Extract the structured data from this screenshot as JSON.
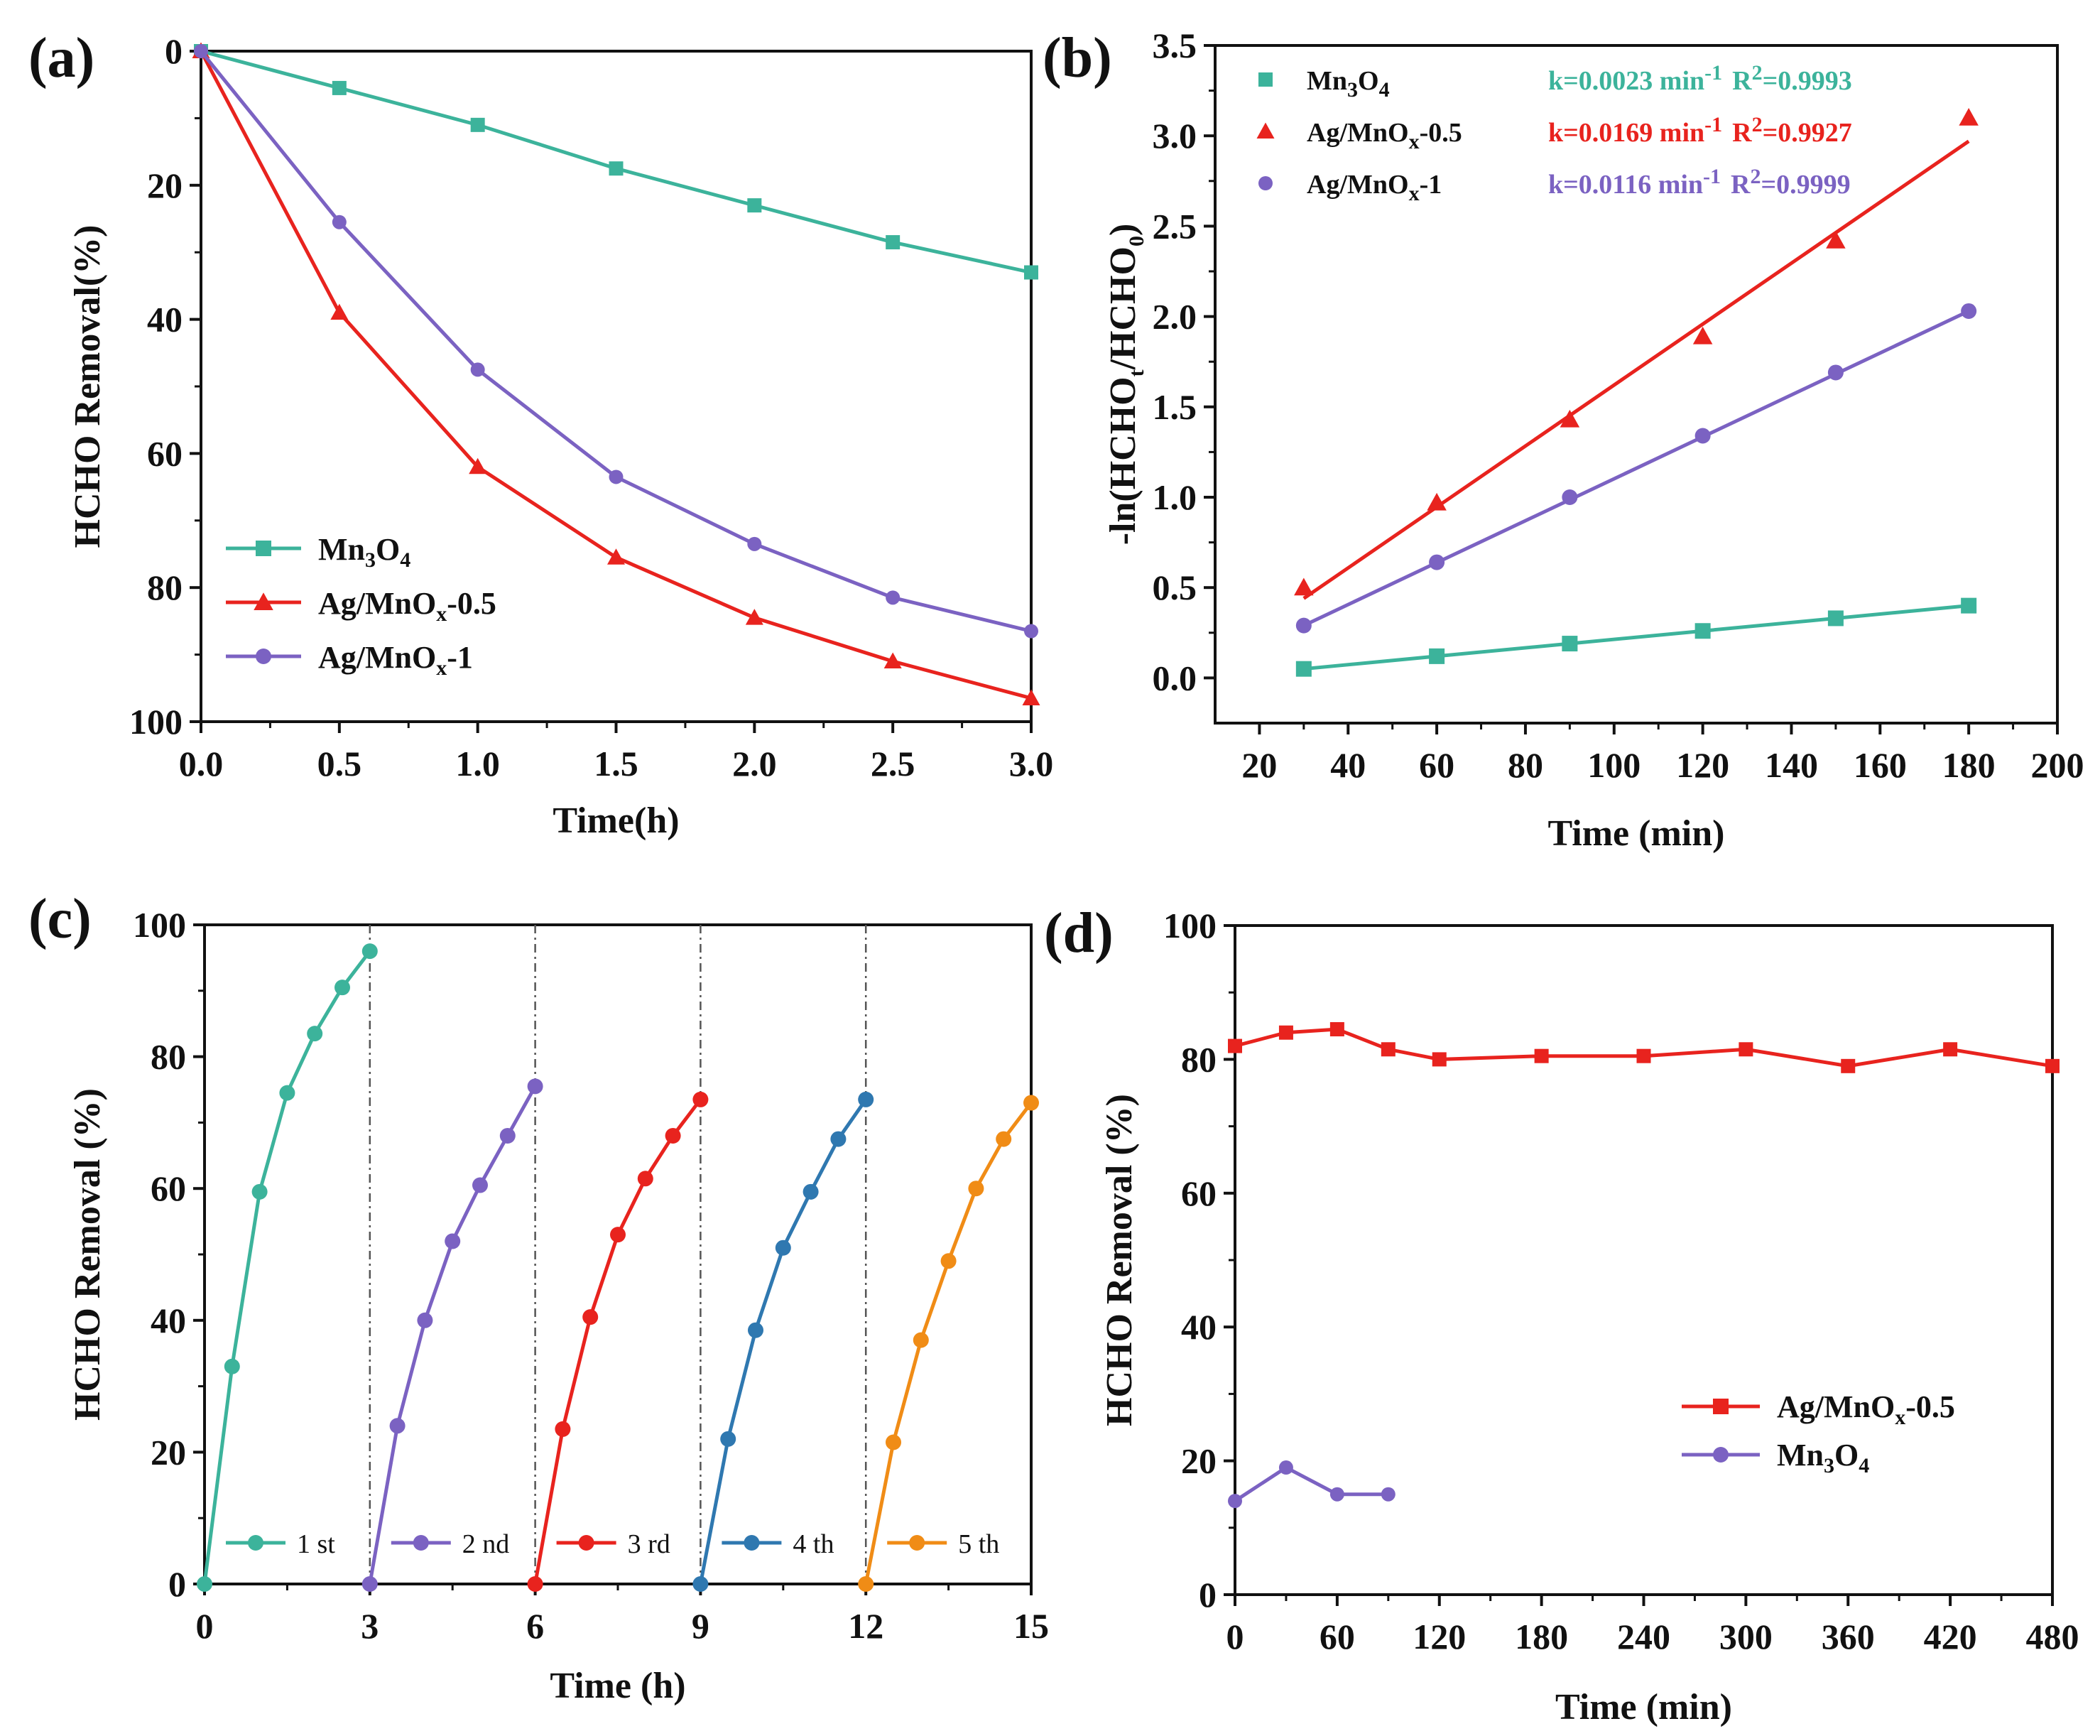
{
  "colors": {
    "mn3o4": "#3cb39b",
    "ag05": "#e8231e",
    "ag1": "#7b62c2",
    "cycle4": "#2f78b0",
    "cycle5": "#f08c16",
    "axis": "#111111"
  },
  "chart_data": [
    {
      "id": "a",
      "panel_label": "(a)",
      "type": "line",
      "xlabel": "Time(h)",
      "ylabel": "HCHO Removal(%)",
      "xlim": [
        0,
        3
      ],
      "ylim": [
        100,
        0
      ],
      "y_inverted": true,
      "xticks": [
        "0.0",
        "0.5",
        "1.0",
        "1.5",
        "2.0",
        "2.5",
        "3.0"
      ],
      "yticks": [
        "0",
        "20",
        "40",
        "60",
        "80",
        "100"
      ],
      "x": [
        0,
        0.5,
        1.0,
        1.5,
        2.0,
        2.5,
        3.0
      ],
      "legend_position": "bottom-left",
      "series": [
        {
          "key": "mn3o4",
          "name_main": "Mn",
          "name_sub1": "3",
          "name_mid": "O",
          "name_sub2": "4",
          "name_tail": "",
          "marker": "square",
          "values": [
            0,
            5.5,
            11,
            17.5,
            23,
            28.5,
            33
          ]
        },
        {
          "key": "ag05",
          "name_main": "Ag/MnO",
          "name_sub1": "x",
          "name_mid": "-0.5",
          "name_sub2": "",
          "name_tail": "",
          "marker": "triangle",
          "values": [
            0,
            39,
            62,
            75.5,
            84.5,
            91,
            96.5
          ]
        },
        {
          "key": "ag1",
          "name_main": "Ag/MnO",
          "name_sub1": "x",
          "name_mid": "-1",
          "name_sub2": "",
          "name_tail": "",
          "marker": "circle",
          "values": [
            0,
            25.5,
            47.5,
            63.5,
            73.5,
            81.5,
            86.5
          ]
        }
      ]
    },
    {
      "id": "b",
      "panel_label": "(b)",
      "type": "scatter",
      "xlabel": "Time (min)",
      "ylabel_main": "-ln(HCHO",
      "ylabel_sub1": "t",
      "ylabel_mid": "/HCHO",
      "ylabel_sub2": "0",
      "ylabel_tail": ")",
      "xlim": [
        10,
        200
      ],
      "ylim": [
        -0.25,
        3.5
      ],
      "xticks": [
        "20",
        "40",
        "60",
        "80",
        "100",
        "120",
        "140",
        "160",
        "180",
        "200"
      ],
      "yticks": [
        "0.0",
        "0.5",
        "1.0",
        "1.5",
        "2.0",
        "2.5",
        "3.0",
        "3.5"
      ],
      "x": [
        30,
        60,
        90,
        120,
        150,
        180
      ],
      "legend_position": "top-left",
      "series": [
        {
          "key": "mn3o4",
          "name_main": "Mn",
          "name_sub1": "3",
          "name_mid": "O",
          "name_sub2": "4",
          "marker": "square",
          "values": [
            0.05,
            0.12,
            0.19,
            0.26,
            0.33,
            0.4
          ],
          "fit": [
            0.05,
            0.4
          ],
          "fit_label": "k=0.0023 min",
          "fit_exp": "-1",
          "r_label": "R",
          "r_exp": "2",
          "r_value": "=0.9993"
        },
        {
          "key": "ag05",
          "name_main": "Ag/MnO",
          "name_sub1": "x",
          "name_mid": "-0.5",
          "name_sub2": "",
          "marker": "triangle",
          "values": [
            0.5,
            0.97,
            1.43,
            1.89,
            2.42,
            3.1
          ],
          "fit": [
            0.44,
            2.97
          ],
          "fit_label": "k=0.0169 min",
          "fit_exp": "-1",
          "r_label": "R",
          "r_exp": "2",
          "r_value": "=0.9927"
        },
        {
          "key": "ag1",
          "name_main": "Ag/MnO",
          "name_sub1": "x",
          "name_mid": "-1",
          "name_sub2": "",
          "marker": "circle",
          "values": [
            0.29,
            0.64,
            1.0,
            1.34,
            1.69,
            2.03
          ],
          "fit": [
            0.29,
            2.03
          ],
          "fit_label": "k=0.0116 min",
          "fit_exp": "-1",
          "r_label": "R",
          "r_exp": "2",
          "r_value": "=0.9999"
        }
      ]
    },
    {
      "id": "c",
      "panel_label": "(c)",
      "type": "line",
      "xlabel": "Time (h)",
      "ylabel": "HCHO Removal (%)",
      "xlim": [
        0,
        15
      ],
      "ylim": [
        0,
        100
      ],
      "xticks": [
        "0",
        "3",
        "6",
        "9",
        "12",
        "15"
      ],
      "yticks": [
        "0",
        "20",
        "40",
        "60",
        "80",
        "100"
      ],
      "dividers": [
        3,
        6,
        9,
        12
      ],
      "legend_position": "bottom",
      "series": [
        {
          "key": "mn3o4",
          "name": "1 st",
          "x": [
            0,
            0.5,
            1.0,
            1.5,
            2.0,
            2.5,
            3.0
          ],
          "values": [
            0,
            33,
            59.5,
            74.5,
            83.5,
            90.5,
            96
          ]
        },
        {
          "key": "ag1",
          "name": "2 nd",
          "x": [
            3.0,
            3.5,
            4.0,
            4.5,
            5.0,
            5.5,
            6.0
          ],
          "values": [
            0,
            24,
            40,
            52,
            60.5,
            68,
            75.5
          ]
        },
        {
          "key": "ag05",
          "name": "3 rd",
          "x": [
            6.0,
            6.5,
            7.0,
            7.5,
            8.0,
            8.5,
            9.0
          ],
          "values": [
            0,
            23.5,
            40.5,
            53,
            61.5,
            68,
            73.5
          ]
        },
        {
          "key": "cycle4",
          "name": "4 th",
          "x": [
            9.0,
            9.5,
            10.0,
            10.5,
            11.0,
            11.5,
            12.0
          ],
          "values": [
            0,
            22,
            38.5,
            51,
            59.5,
            67.5,
            73.5
          ]
        },
        {
          "key": "cycle5",
          "name": "5 th",
          "x": [
            12.0,
            12.5,
            13.0,
            13.5,
            14.0,
            14.5,
            15.0
          ],
          "values": [
            0,
            21.5,
            37,
            49,
            60,
            67.5,
            73
          ]
        }
      ]
    },
    {
      "id": "d",
      "panel_label": "(d)",
      "type": "line",
      "xlabel": "Time (min)",
      "ylabel": "HCHO Removal (%)",
      "xlim": [
        0,
        480
      ],
      "ylim": [
        0,
        100
      ],
      "xticks": [
        "0",
        "60",
        "120",
        "180",
        "240",
        "300",
        "360",
        "420",
        "480"
      ],
      "yticks": [
        "0",
        "20",
        "40",
        "60",
        "80",
        "100"
      ],
      "legend_position": "bottom-right",
      "series": [
        {
          "key": "ag05",
          "name_main": "Ag/MnO",
          "name_sub1": "x",
          "name_mid": "-0.5",
          "name_sub2": "",
          "marker": "square",
          "x": [
            0,
            30,
            60,
            90,
            120,
            180,
            240,
            300,
            360,
            420,
            480
          ],
          "values": [
            82,
            84,
            84.5,
            81.5,
            80,
            80.5,
            80.5,
            81.5,
            79,
            81.5,
            79
          ]
        },
        {
          "key": "ag1",
          "name_main": "Mn",
          "name_sub1": "3",
          "name_mid": "O",
          "name_sub2": "4",
          "marker": "circle",
          "x": [
            0,
            30,
            60,
            90
          ],
          "values": [
            14,
            19,
            15,
            15
          ]
        }
      ]
    }
  ]
}
